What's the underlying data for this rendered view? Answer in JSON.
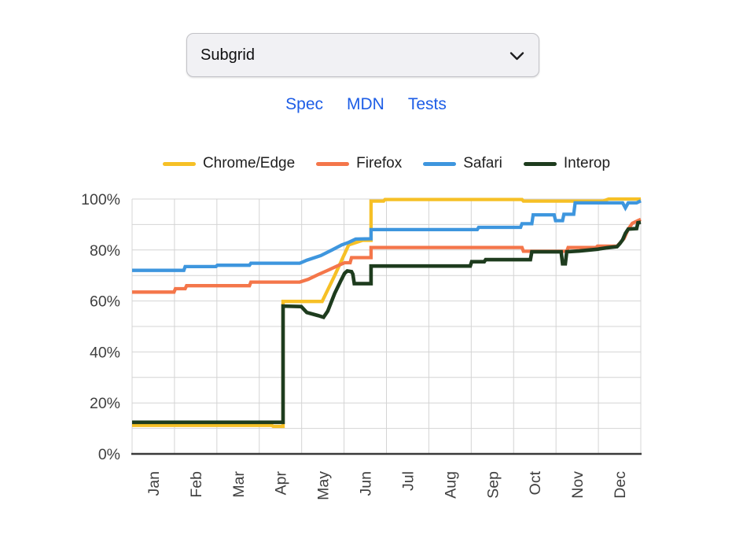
{
  "dropdown": {
    "value": "Subgrid"
  },
  "links": [
    {
      "label": "Spec"
    },
    {
      "label": "MDN"
    },
    {
      "label": "Tests"
    }
  ],
  "colors": {
    "link_blue": "#1d5de6",
    "grid_light": "#d4d4d4",
    "axis_dark": "#3a3a3a",
    "tick_text": "#3f3f3f",
    "select_bg": "#f1f1f4",
    "select_border": "#c2c2c7"
  },
  "chart_data": {
    "type": "line",
    "title": "",
    "xlabel": "",
    "ylabel": "",
    "categories": [
      "Jan",
      "Feb",
      "Mar",
      "Apr",
      "May",
      "Jun",
      "Jul",
      "Aug",
      "Sep",
      "Oct",
      "Nov",
      "Dec"
    ],
    "yticks": [
      "0%",
      "20%",
      "40%",
      "60%",
      "80%",
      "100%"
    ],
    "ylim": [
      0,
      100
    ],
    "y_minor_grid_interval": 10,
    "x_unit": "day-of-year (0-364, Jan 1 to Dec 31)",
    "grid": true,
    "legend_position": "top-center",
    "series": [
      {
        "name": "Chrome/Edge",
        "color": "#F6C026",
        "points": [
          [
            0,
            11.2
          ],
          [
            100,
            11.2
          ],
          [
            101,
            10.8
          ],
          [
            108,
            10.8
          ],
          [
            108,
            59.8
          ],
          [
            136,
            59.8
          ],
          [
            145,
            70
          ],
          [
            155,
            82
          ],
          [
            165,
            83.8
          ],
          [
            171,
            83.8
          ],
          [
            171,
            99.2
          ],
          [
            180,
            99.2
          ],
          [
            181,
            99.8
          ],
          [
            279,
            99.8
          ],
          [
            280,
            99.2
          ],
          [
            337,
            99.2
          ],
          [
            341,
            100
          ],
          [
            364,
            100
          ]
        ]
      },
      {
        "name": "Firefox",
        "color": "#F4764A",
        "points": [
          [
            0,
            63.5
          ],
          [
            30,
            63.5
          ],
          [
            31,
            64.8
          ],
          [
            38,
            64.8
          ],
          [
            39,
            66
          ],
          [
            84,
            66
          ],
          [
            85,
            67.4
          ],
          [
            120,
            67.4
          ],
          [
            126,
            68.5
          ],
          [
            133,
            70.3
          ],
          [
            140,
            72
          ],
          [
            147,
            73.8
          ],
          [
            152,
            75
          ],
          [
            156,
            75
          ],
          [
            157,
            77
          ],
          [
            170,
            77
          ],
          [
            171,
            77
          ],
          [
            171,
            81
          ],
          [
            279,
            81
          ],
          [
            280,
            79.5
          ],
          [
            311,
            79.5
          ],
          [
            312,
            81
          ],
          [
            332,
            81
          ],
          [
            333,
            81.5
          ],
          [
            347,
            81.5
          ],
          [
            352,
            84.5
          ],
          [
            355,
            88.2
          ],
          [
            358,
            90.5
          ],
          [
            362,
            91.5
          ],
          [
            364,
            92
          ]
        ]
      },
      {
        "name": "Safari",
        "color": "#3E96DE",
        "points": [
          [
            0,
            72
          ],
          [
            37,
            72
          ],
          [
            38,
            73.5
          ],
          [
            60,
            73.5
          ],
          [
            61,
            74
          ],
          [
            84,
            74
          ],
          [
            85,
            74.8
          ],
          [
            120,
            74.8
          ],
          [
            125,
            76
          ],
          [
            135,
            77.8
          ],
          [
            143,
            80
          ],
          [
            150,
            82
          ],
          [
            155,
            83
          ],
          [
            160,
            84.3
          ],
          [
            170,
            84.4
          ],
          [
            171,
            84.4
          ],
          [
            171,
            88
          ],
          [
            247,
            88
          ],
          [
            248,
            88.9
          ],
          [
            278,
            88.9
          ],
          [
            279,
            90.3
          ],
          [
            286,
            90.3
          ],
          [
            287,
            93.8
          ],
          [
            302,
            93.8
          ],
          [
            303,
            91.5
          ],
          [
            308,
            91.5
          ],
          [
            309,
            94
          ],
          [
            316,
            94
          ],
          [
            317,
            98.5
          ],
          [
            351,
            98.5
          ],
          [
            353,
            96.5
          ],
          [
            355,
            98.5
          ],
          [
            361,
            98.5
          ],
          [
            364,
            99.3
          ]
        ]
      },
      {
        "name": "Interop",
        "color": "#1E3C1E",
        "points": [
          [
            0,
            12.4
          ],
          [
            108,
            12.4
          ],
          [
            108,
            58
          ],
          [
            121,
            57.8
          ],
          [
            125,
            55.5
          ],
          [
            133,
            54.3
          ],
          [
            137,
            53.6
          ],
          [
            140,
            56
          ],
          [
            145,
            63
          ],
          [
            149,
            67.5
          ],
          [
            152,
            70.8
          ],
          [
            154,
            71.8
          ],
          [
            157,
            71.5
          ],
          [
            158,
            70.5
          ],
          [
            159,
            66.8
          ],
          [
            170,
            66.8
          ],
          [
            171,
            66.8
          ],
          [
            171,
            73.7
          ],
          [
            242,
            73.7
          ],
          [
            243,
            75.4
          ],
          [
            252,
            75.4
          ],
          [
            253,
            76.2
          ],
          [
            285,
            76.2
          ],
          [
            286,
            79.3
          ],
          [
            307,
            79.3
          ],
          [
            308,
            74.6
          ],
          [
            310,
            74.6
          ],
          [
            311,
            79.3
          ],
          [
            320,
            79.6
          ],
          [
            333,
            80.3
          ],
          [
            340,
            80.9
          ],
          [
            347,
            81.3
          ],
          [
            349,
            82.5
          ],
          [
            351,
            84
          ],
          [
            353,
            86.5
          ],
          [
            355,
            88.2
          ],
          [
            361,
            88.4
          ],
          [
            362,
            90.7
          ],
          [
            364,
            90.9
          ]
        ]
      }
    ]
  }
}
